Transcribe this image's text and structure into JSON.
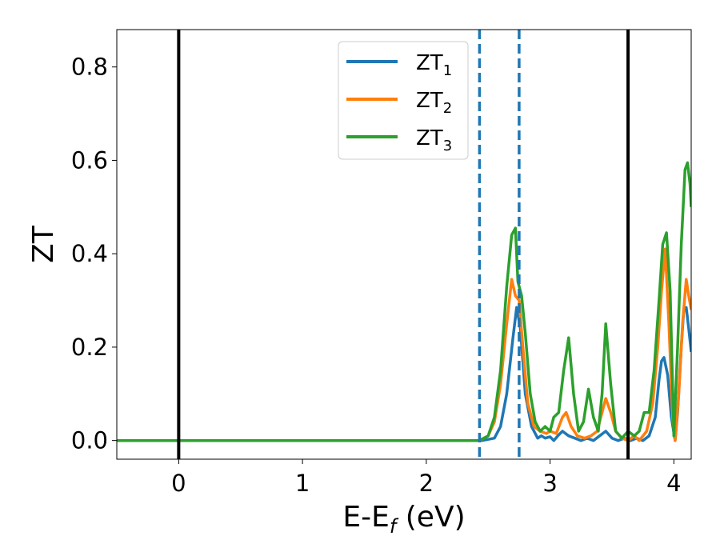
{
  "chart_data": {
    "type": "line",
    "xlabel": "E-E",
    "xlabel_sub": "f",
    "xlabel_unit": " (eV)",
    "ylabel": "ZT",
    "xlim": [
      -0.5,
      4.14
    ],
    "ylim": [
      -0.04,
      0.88
    ],
    "xticks": [
      0,
      1,
      2,
      3,
      4
    ],
    "yticks": [
      0.0,
      0.2,
      0.4,
      0.6,
      0.8
    ],
    "xtick_labels": [
      "0",
      "1",
      "2",
      "3",
      "4"
    ],
    "ytick_labels": [
      "0.0",
      "0.2",
      "0.4",
      "0.6",
      "0.8"
    ],
    "grid": false,
    "legend_position": "top-center",
    "vlines": [
      {
        "x": 0.0,
        "style": "solid",
        "color": "#000000"
      },
      {
        "x": 3.63,
        "style": "solid",
        "color": "#000000"
      },
      {
        "x": 2.43,
        "style": "dashed",
        "color": "#1f77b4"
      },
      {
        "x": 2.75,
        "style": "dashed",
        "color": "#1f77b4"
      }
    ],
    "series": [
      {
        "name": "ZT",
        "sub": "1",
        "color": "#1f77b4",
        "x": [
          -0.5,
          2.45,
          2.55,
          2.6,
          2.65,
          2.7,
          2.73,
          2.76,
          2.8,
          2.85,
          2.9,
          2.93,
          2.96,
          3.0,
          3.03,
          3.07,
          3.1,
          3.15,
          3.2,
          3.25,
          3.3,
          3.35,
          3.4,
          3.45,
          3.5,
          3.55,
          3.6,
          3.65,
          3.7,
          3.75,
          3.8,
          3.85,
          3.88,
          3.9,
          3.92,
          3.95,
          3.98,
          4.01,
          4.03,
          4.06,
          4.08,
          4.1,
          4.12,
          4.14
        ],
        "y": [
          0.0,
          0.0,
          0.005,
          0.03,
          0.1,
          0.22,
          0.285,
          0.24,
          0.1,
          0.03,
          0.005,
          0.01,
          0.005,
          0.008,
          0.0,
          0.012,
          0.02,
          0.01,
          0.005,
          0.0,
          0.005,
          0.0,
          0.01,
          0.02,
          0.005,
          0.0,
          0.005,
          0.0,
          0.005,
          0.0,
          0.01,
          0.05,
          0.13,
          0.17,
          0.178,
          0.14,
          0.05,
          0.0,
          0.06,
          0.2,
          0.28,
          0.285,
          0.24,
          0.19
        ]
      },
      {
        "name": "ZT",
        "sub": "2",
        "color": "#ff7f0e",
        "x": [
          -0.5,
          2.43,
          2.5,
          2.55,
          2.6,
          2.65,
          2.69,
          2.72,
          2.75,
          2.78,
          2.82,
          2.87,
          2.92,
          2.97,
          3.0,
          3.05,
          3.1,
          3.13,
          3.17,
          3.22,
          3.28,
          3.33,
          3.38,
          3.42,
          3.45,
          3.49,
          3.53,
          3.58,
          3.63,
          3.68,
          3.72,
          3.78,
          3.83,
          3.87,
          3.9,
          3.93,
          3.96,
          3.99,
          4.01,
          4.04,
          4.07,
          4.1,
          4.12,
          4.14
        ],
        "y": [
          0.0,
          0.0,
          0.01,
          0.04,
          0.12,
          0.25,
          0.345,
          0.31,
          0.3,
          0.2,
          0.08,
          0.03,
          0.02,
          0.015,
          0.02,
          0.015,
          0.05,
          0.06,
          0.03,
          0.01,
          0.005,
          0.01,
          0.02,
          0.06,
          0.09,
          0.06,
          0.02,
          0.005,
          0.0,
          0.01,
          0.0,
          0.02,
          0.08,
          0.2,
          0.32,
          0.41,
          0.25,
          0.05,
          0.0,
          0.1,
          0.25,
          0.345,
          0.31,
          0.28
        ]
      },
      {
        "name": "ZT",
        "sub": "3",
        "color": "#2ca02c",
        "x": [
          -0.5,
          2.43,
          2.5,
          2.55,
          2.6,
          2.65,
          2.69,
          2.72,
          2.74,
          2.77,
          2.8,
          2.84,
          2.88,
          2.92,
          2.96,
          3.0,
          3.03,
          3.07,
          3.11,
          3.15,
          3.19,
          3.23,
          3.27,
          3.31,
          3.35,
          3.39,
          3.42,
          3.45,
          3.49,
          3.53,
          3.58,
          3.63,
          3.68,
          3.72,
          3.76,
          3.8,
          3.84,
          3.88,
          3.91,
          3.94,
          3.97,
          4.0,
          4.03,
          4.06,
          4.09,
          4.11,
          4.13,
          4.14
        ],
        "y": [
          0.0,
          0.0,
          0.01,
          0.05,
          0.15,
          0.33,
          0.44,
          0.455,
          0.34,
          0.31,
          0.23,
          0.1,
          0.04,
          0.02,
          0.03,
          0.02,
          0.05,
          0.06,
          0.15,
          0.22,
          0.1,
          0.02,
          0.04,
          0.11,
          0.05,
          0.02,
          0.1,
          0.25,
          0.12,
          0.02,
          0.005,
          0.02,
          0.01,
          0.02,
          0.06,
          0.06,
          0.15,
          0.3,
          0.42,
          0.445,
          0.32,
          0.01,
          0.2,
          0.42,
          0.58,
          0.595,
          0.55,
          0.5
        ]
      }
    ]
  }
}
